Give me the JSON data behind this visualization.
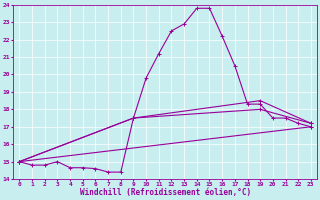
{
  "background_color": "#c8eef0",
  "grid_color": "#ffffff",
  "line_color": "#990099",
  "xlabel": "Windchill (Refroidissement éolien,°C)",
  "xlim": [
    -0.5,
    23.5
  ],
  "ylim": [
    14,
    24
  ],
  "xticks": [
    0,
    1,
    2,
    3,
    4,
    5,
    6,
    7,
    8,
    9,
    10,
    11,
    12,
    13,
    14,
    15,
    16,
    17,
    18,
    19,
    20,
    21,
    22,
    23
  ],
  "yticks": [
    14,
    15,
    16,
    17,
    18,
    19,
    20,
    21,
    22,
    23,
    24
  ],
  "series": [
    {
      "x": [
        0,
        1,
        2,
        3,
        4,
        5,
        6,
        7,
        8,
        9,
        10,
        11,
        12,
        13,
        14,
        15,
        16,
        17,
        18,
        19,
        20,
        21,
        22,
        23
      ],
      "y": [
        15.0,
        14.8,
        14.8,
        15.0,
        14.65,
        14.65,
        14.6,
        14.4,
        14.4,
        17.5,
        19.8,
        21.2,
        22.5,
        22.9,
        23.8,
        23.8,
        22.2,
        20.5,
        18.3,
        18.3,
        17.5,
        17.5,
        17.2,
        17.0
      ]
    },
    {
      "x": [
        0,
        23
      ],
      "y": [
        15.0,
        17.0
      ]
    },
    {
      "x": [
        0,
        9,
        19,
        23
      ],
      "y": [
        15.0,
        17.5,
        18.5,
        17.2
      ]
    },
    {
      "x": [
        0,
        9,
        19,
        23
      ],
      "y": [
        15.0,
        17.5,
        18.0,
        17.2
      ]
    }
  ],
  "marker": "+",
  "markersize": 3.5,
  "linewidth": 0.8,
  "tick_fontsize": 4.5,
  "xlabel_fontsize": 5.5
}
